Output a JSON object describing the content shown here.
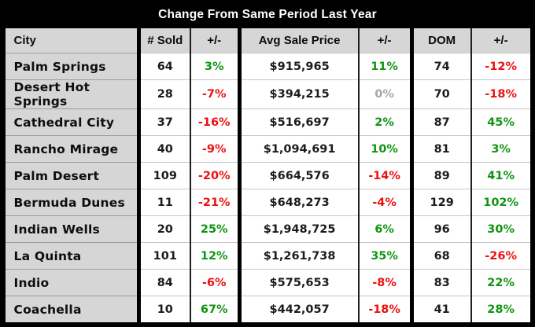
{
  "title": "Change From Same Period Last Year",
  "colors": {
    "positive": "#109410",
    "negative": "#ee1111",
    "zero": "#a6a6a6",
    "header_bg": "#d6d6d6",
    "city_col_bg": "#d6d6d6",
    "cell_bg": "#ffffff",
    "frame_bg": "#000000",
    "title_text": "#ffffff"
  },
  "chart_data": {
    "type": "table",
    "title": "Change From Same Period Last Year",
    "columns": [
      "City",
      "# Sold",
      "+/-",
      "Avg Sale Price",
      "+/-",
      "DOM",
      "+/-"
    ],
    "rows": [
      {
        "city": "Palm Springs",
        "sold": "64",
        "sold_change": "3%",
        "avg_price": "$915,965",
        "price_change": "11%",
        "dom": "74",
        "dom_change": "-12%"
      },
      {
        "city": "Desert Hot Springs",
        "sold": "28",
        "sold_change": "-7%",
        "avg_price": "$394,215",
        "price_change": "0%",
        "dom": "70",
        "dom_change": "-18%"
      },
      {
        "city": "Cathedral City",
        "sold": "37",
        "sold_change": "-16%",
        "avg_price": "$516,697",
        "price_change": "2%",
        "dom": "87",
        "dom_change": "45%"
      },
      {
        "city": "Rancho Mirage",
        "sold": "40",
        "sold_change": "-9%",
        "avg_price": "$1,094,691",
        "price_change": "10%",
        "dom": "81",
        "dom_change": "3%"
      },
      {
        "city": "Palm Desert",
        "sold": "109",
        "sold_change": "-20%",
        "avg_price": "$664,576",
        "price_change": "-14%",
        "dom": "89",
        "dom_change": "41%"
      },
      {
        "city": "Bermuda Dunes",
        "sold": "11",
        "sold_change": "-21%",
        "avg_price": "$648,273",
        "price_change": "-4%",
        "dom": "129",
        "dom_change": "102%"
      },
      {
        "city": "Indian Wells",
        "sold": "20",
        "sold_change": "25%",
        "avg_price": "$1,948,725",
        "price_change": "6%",
        "dom": "96",
        "dom_change": "30%"
      },
      {
        "city": "La Quinta",
        "sold": "101",
        "sold_change": "12%",
        "avg_price": "$1,261,738",
        "price_change": "35%",
        "dom": "68",
        "dom_change": "-26%"
      },
      {
        "city": "Indio",
        "sold": "84",
        "sold_change": "-6%",
        "avg_price": "$575,653",
        "price_change": "-8%",
        "dom": "83",
        "dom_change": "22%"
      },
      {
        "city": "Coachella",
        "sold": "10",
        "sold_change": "67%",
        "avg_price": "$442,057",
        "price_change": "-18%",
        "dom": "41",
        "dom_change": "28%"
      }
    ]
  }
}
